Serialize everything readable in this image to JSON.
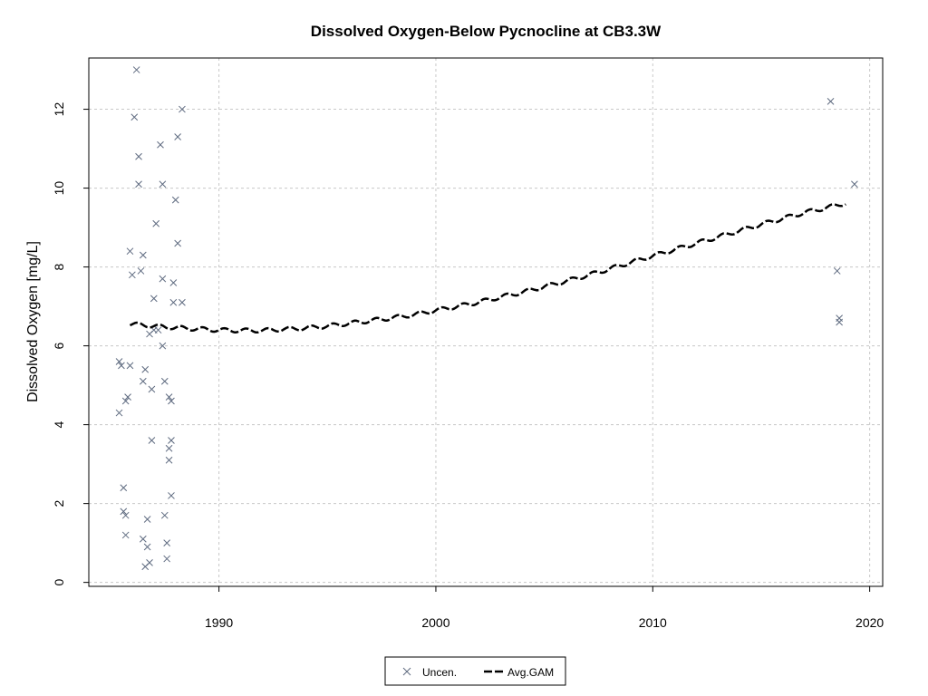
{
  "chart_data": {
    "type": "scatter",
    "title": "Dissolved Oxygen-Below Pycnocline at CB3.3W",
    "xlabel": "",
    "ylabel": "Dissolved Oxygen [mg/L]",
    "xlim": [
      1984,
      2020.6
    ],
    "ylim": [
      -0.1,
      13.3
    ],
    "x_ticks": [
      1990,
      2000,
      2010,
      2020
    ],
    "y_ticks": [
      0,
      2,
      4,
      6,
      8,
      10,
      12
    ],
    "grid": true,
    "legend_position": "bottom-center",
    "series": [
      {
        "name": "Uncen.",
        "kind": "scatter",
        "marker": "x",
        "color": "#5f6b80",
        "points": [
          [
            1985.4,
            5.6
          ],
          [
            1985.4,
            4.3
          ],
          [
            1985.5,
            5.5
          ],
          [
            1985.6,
            1.8
          ],
          [
            1985.6,
            2.4
          ],
          [
            1985.7,
            4.6
          ],
          [
            1985.7,
            1.7
          ],
          [
            1985.7,
            1.2
          ],
          [
            1985.8,
            4.7
          ],
          [
            1985.9,
            5.5
          ],
          [
            1985.9,
            8.4
          ],
          [
            1986.0,
            7.8
          ],
          [
            1986.1,
            11.8
          ],
          [
            1986.2,
            13.0
          ],
          [
            1986.3,
            10.8
          ],
          [
            1986.3,
            10.1
          ],
          [
            1986.4,
            7.9
          ],
          [
            1986.5,
            8.3
          ],
          [
            1986.5,
            5.1
          ],
          [
            1986.5,
            1.1
          ],
          [
            1986.6,
            5.4
          ],
          [
            1986.6,
            0.4
          ],
          [
            1986.7,
            1.6
          ],
          [
            1986.7,
            0.9
          ],
          [
            1986.8,
            6.3
          ],
          [
            1986.8,
            0.5
          ],
          [
            1986.9,
            4.9
          ],
          [
            1986.9,
            3.6
          ],
          [
            1987.0,
            7.2
          ],
          [
            1987.0,
            6.4
          ],
          [
            1987.1,
            9.1
          ],
          [
            1987.2,
            6.4
          ],
          [
            1987.3,
            11.1
          ],
          [
            1987.4,
            10.1
          ],
          [
            1987.4,
            7.7
          ],
          [
            1987.4,
            6.0
          ],
          [
            1987.5,
            5.1
          ],
          [
            1987.5,
            1.7
          ],
          [
            1987.6,
            1.0
          ],
          [
            1987.6,
            0.6
          ],
          [
            1987.7,
            3.4
          ],
          [
            1987.7,
            4.7
          ],
          [
            1987.7,
            3.1
          ],
          [
            1987.8,
            3.6
          ],
          [
            1987.8,
            4.6
          ],
          [
            1987.8,
            2.2
          ],
          [
            1987.9,
            7.6
          ],
          [
            1987.9,
            7.1
          ],
          [
            1988.0,
            9.7
          ],
          [
            1988.1,
            8.6
          ],
          [
            1988.1,
            11.3
          ],
          [
            1988.3,
            12.0
          ],
          [
            1988.3,
            7.1
          ],
          [
            2018.2,
            12.2
          ],
          [
            2018.5,
            7.9
          ],
          [
            2018.6,
            6.7
          ],
          [
            2018.6,
            6.6
          ],
          [
            2019.3,
            10.1
          ]
        ]
      },
      {
        "name": "Avg.GAM",
        "kind": "line",
        "style": "dashed",
        "color": "#000000",
        "points": [
          [
            1985.9,
            6.55
          ],
          [
            1986.5,
            6.53
          ],
          [
            1987.0,
            6.5
          ],
          [
            1987.5,
            6.48
          ],
          [
            1988.0,
            6.46
          ],
          [
            1989.0,
            6.43
          ],
          [
            1990.0,
            6.4
          ],
          [
            1991.0,
            6.39
          ],
          [
            1992.0,
            6.39
          ],
          [
            1993.0,
            6.42
          ],
          [
            1994.0,
            6.45
          ],
          [
            1995.0,
            6.5
          ],
          [
            1996.0,
            6.57
          ],
          [
            1997.0,
            6.64
          ],
          [
            1998.0,
            6.71
          ],
          [
            1999.0,
            6.79
          ],
          [
            2000.0,
            6.9
          ],
          [
            2001.0,
            7.0
          ],
          [
            2002.0,
            7.11
          ],
          [
            2003.0,
            7.24
          ],
          [
            2004.0,
            7.36
          ],
          [
            2005.0,
            7.5
          ],
          [
            2006.0,
            7.64
          ],
          [
            2007.0,
            7.79
          ],
          [
            2008.0,
            7.95
          ],
          [
            2009.0,
            8.12
          ],
          [
            2010.0,
            8.28
          ],
          [
            2011.0,
            8.44
          ],
          [
            2012.0,
            8.6
          ],
          [
            2013.0,
            8.76
          ],
          [
            2014.0,
            8.92
          ],
          [
            2015.0,
            9.08
          ],
          [
            2016.0,
            9.23
          ],
          [
            2017.0,
            9.38
          ],
          [
            2018.0,
            9.5
          ],
          [
            2018.9,
            9.62
          ]
        ]
      }
    ]
  }
}
